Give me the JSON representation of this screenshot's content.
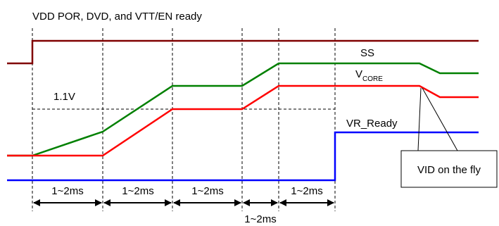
{
  "title": "VDD POR, DVD, and VTT/EN ready",
  "threshold_label": "1.1V",
  "signals": {
    "ss": {
      "label": "SS",
      "color": "#008000"
    },
    "vcore": {
      "label": "V",
      "subscript": "CORE",
      "color": "#ff0000"
    },
    "vr_ready": {
      "label": "VR_Ready",
      "color": "#0000ff"
    },
    "por": {
      "color": "#800000"
    }
  },
  "intervals": {
    "seg1": "1~2ms",
    "seg2": "1~2ms",
    "seg3": "1~2ms",
    "seg4": "1~2ms",
    "seg5": "1~2ms"
  },
  "callout": {
    "text": "VID on the fly"
  }
}
